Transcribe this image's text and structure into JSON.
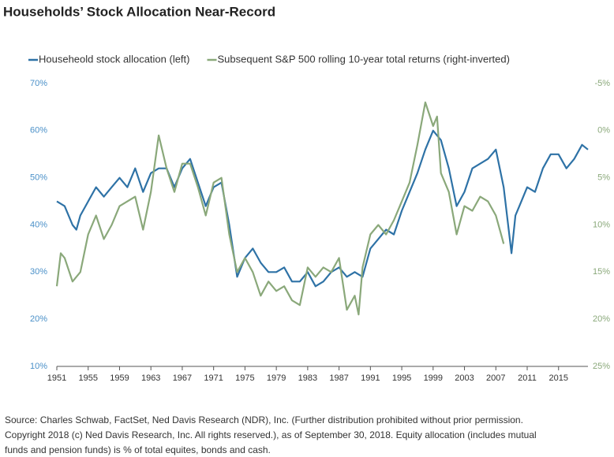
{
  "chart_data": {
    "type": "line",
    "title": "Households’ Stock Allocation Near-Record",
    "source": [
      "Source: Charles Schwab, FactSet, Ned Davis Research (NDR), Inc. (Further distribution prohibited without prior permission.",
      "Copyright 2018 (c) Ned Davis Research, Inc. All rights reserved.), as of September 30, 2018. Equity allocation (includes mutual",
      "funds and pension funds) is % of total equites, bonds and cash."
    ],
    "xlim": [
      1951,
      2018.75
    ],
    "xticks": [
      1951,
      1955,
      1959,
      1963,
      1967,
      1971,
      1975,
      1979,
      1983,
      1987,
      1991,
      1995,
      1999,
      2003,
      2007,
      2011,
      2015
    ],
    "ylim": [
      10,
      70
    ],
    "yticks": [
      {
        "value": 10,
        "label": "10%"
      },
      {
        "value": 20,
        "label": "20%"
      },
      {
        "value": 30,
        "label": "30%"
      },
      {
        "value": 40,
        "label": "40%"
      },
      {
        "value": 50,
        "label": "50%"
      },
      {
        "value": 60,
        "label": "60%"
      },
      {
        "value": 70,
        "label": "70%"
      }
    ],
    "y2lim": [
      25,
      -5
    ],
    "y2ticks": [
      {
        "value": -5,
        "label": "-5%"
      },
      {
        "value": 0,
        "label": "0%"
      },
      {
        "value": 5,
        "label": "5%"
      },
      {
        "value": 10,
        "label": "10%"
      },
      {
        "value": 15,
        "label": "15%"
      },
      {
        "value": 20,
        "label": "20%"
      },
      {
        "value": 25,
        "label": "25%"
      }
    ],
    "series": [
      {
        "name": "Househeold stock allocation (left)",
        "color": "#2e72a6",
        "axis": "y",
        "x": [
          1951,
          1952,
          1953,
          1953.5,
          1954,
          1955,
          1956,
          1957,
          1958,
          1959,
          1960,
          1961,
          1962,
          1963,
          1964,
          1965,
          1966,
          1967,
          1968,
          1969,
          1970,
          1971,
          1972,
          1973,
          1974,
          1975,
          1976,
          1977,
          1978,
          1979,
          1980,
          1981,
          1982,
          1983,
          1984,
          1985,
          1986,
          1987,
          1988,
          1989,
          1990,
          1991,
          1992,
          1993,
          1994,
          1995,
          1996,
          1997,
          1998,
          1999,
          2000,
          2001,
          2002,
          2003,
          2004,
          2005,
          2006,
          2007,
          2008,
          2009,
          2009.5,
          2010,
          2011,
          2012,
          2013,
          2014,
          2015,
          2016,
          2017,
          2018,
          2018.75
        ],
        "values": [
          45,
          44,
          40,
          39,
          42,
          45,
          48,
          46,
          48,
          50,
          48,
          52,
          47,
          51,
          52,
          52,
          48,
          52,
          54,
          49,
          44,
          48,
          49,
          40,
          29,
          33,
          35,
          32,
          30,
          30,
          31,
          28,
          28,
          30,
          27,
          28,
          30,
          31,
          29,
          30,
          29,
          35,
          37,
          39,
          38,
          43,
          47,
          51,
          56,
          60,
          58,
          52,
          44,
          47,
          52,
          53,
          54,
          56,
          48,
          34,
          42,
          44,
          48,
          47,
          52,
          55,
          55,
          52,
          54,
          57,
          56
        ]
      },
      {
        "name": "Subsequent S&P 500 rolling 10-year total returns (right-inverted)",
        "color": "#8aa87a",
        "axis": "y2",
        "x": [
          1951,
          1951.5,
          1952,
          1953,
          1954,
          1955,
          1956,
          1957,
          1958,
          1959,
          1960,
          1961,
          1962,
          1963,
          1964,
          1965,
          1966,
          1967,
          1968,
          1969,
          1970,
          1971,
          1972,
          1973,
          1974,
          1975,
          1976,
          1977,
          1978,
          1979,
          1980,
          1981,
          1982,
          1983,
          1984,
          1985,
          1986,
          1987,
          1988,
          1989,
          1989.5,
          1990,
          1991,
          1992,
          1993,
          1994,
          1995,
          1996,
          1997,
          1998,
          1999,
          1999.5,
          2000,
          2001,
          2002,
          2003,
          2004,
          2005,
          2006,
          2007,
          2008
        ],
        "values": [
          16.5,
          13,
          13.5,
          16,
          15,
          11,
          9,
          11.5,
          10,
          8,
          7.5,
          7,
          10.5,
          6.5,
          0.5,
          4,
          6.5,
          3.5,
          3.5,
          6,
          9,
          5.5,
          5,
          11,
          15,
          13.5,
          15,
          17.5,
          16,
          17,
          16.5,
          18,
          18.5,
          14.5,
          15.5,
          14.5,
          15,
          13.5,
          19,
          17.5,
          19.5,
          14.5,
          11,
          10,
          11,
          9.5,
          7.5,
          5.5,
          1.5,
          -3,
          -0.5,
          -1.5,
          4.5,
          6.5,
          11,
          8,
          8.5,
          7,
          7.5,
          9,
          12
        ]
      }
    ]
  }
}
